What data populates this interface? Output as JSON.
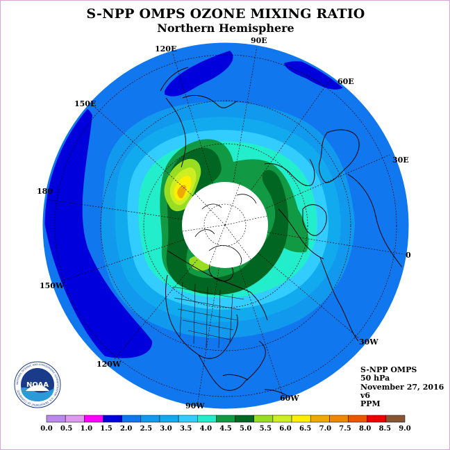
{
  "header": {
    "title": "S-NPP OMPS OZONE MIXING RATIO",
    "subtitle": "Northern Hemisphere"
  },
  "map": {
    "projection": "polar stereographic, north pole",
    "longitude_labels": [
      "90E",
      "60E",
      "30E",
      "0",
      "30W",
      "60W",
      "90W",
      "120W",
      "150W",
      "180",
      "150E",
      "120E"
    ],
    "data_gap": "white disk over the polar region (no data)",
    "contour_colors_note": "colors follow the colorbar classes"
  },
  "info": {
    "instrument": "S-NPP OMPS",
    "level": "50 hPa",
    "date": "November 27, 2016",
    "version": "v6",
    "units": "PPM"
  },
  "colorbar": {
    "ticks": [
      "0.0",
      "0.5",
      "1.0",
      "1.5",
      "2.0",
      "2.5",
      "3.0",
      "3.5",
      "4.0",
      "4.5",
      "5.0",
      "5.5",
      "6.0",
      "6.5",
      "7.0",
      "7.5",
      "8.0",
      "8.5",
      "9.0"
    ],
    "colors": [
      "#bb88ee",
      "#dd99ee",
      "#ff00ff",
      "#0000dd",
      "#1177ee",
      "#1199ee",
      "#11aaee",
      "#33ccff",
      "#22eecc",
      "#119944",
      "#006622",
      "#99dd22",
      "#ccee22",
      "#ffee00",
      "#eeaa00",
      "#ee8800",
      "#ee5500",
      "#ee0000",
      "#885533"
    ]
  },
  "logo": {
    "text": "NOAA",
    "ring_text": "NATIONAL OCEANIC AND ATMOSPHERIC ADMINISTRATION · U.S. DEPARTMENT OF COMMERCE"
  }
}
